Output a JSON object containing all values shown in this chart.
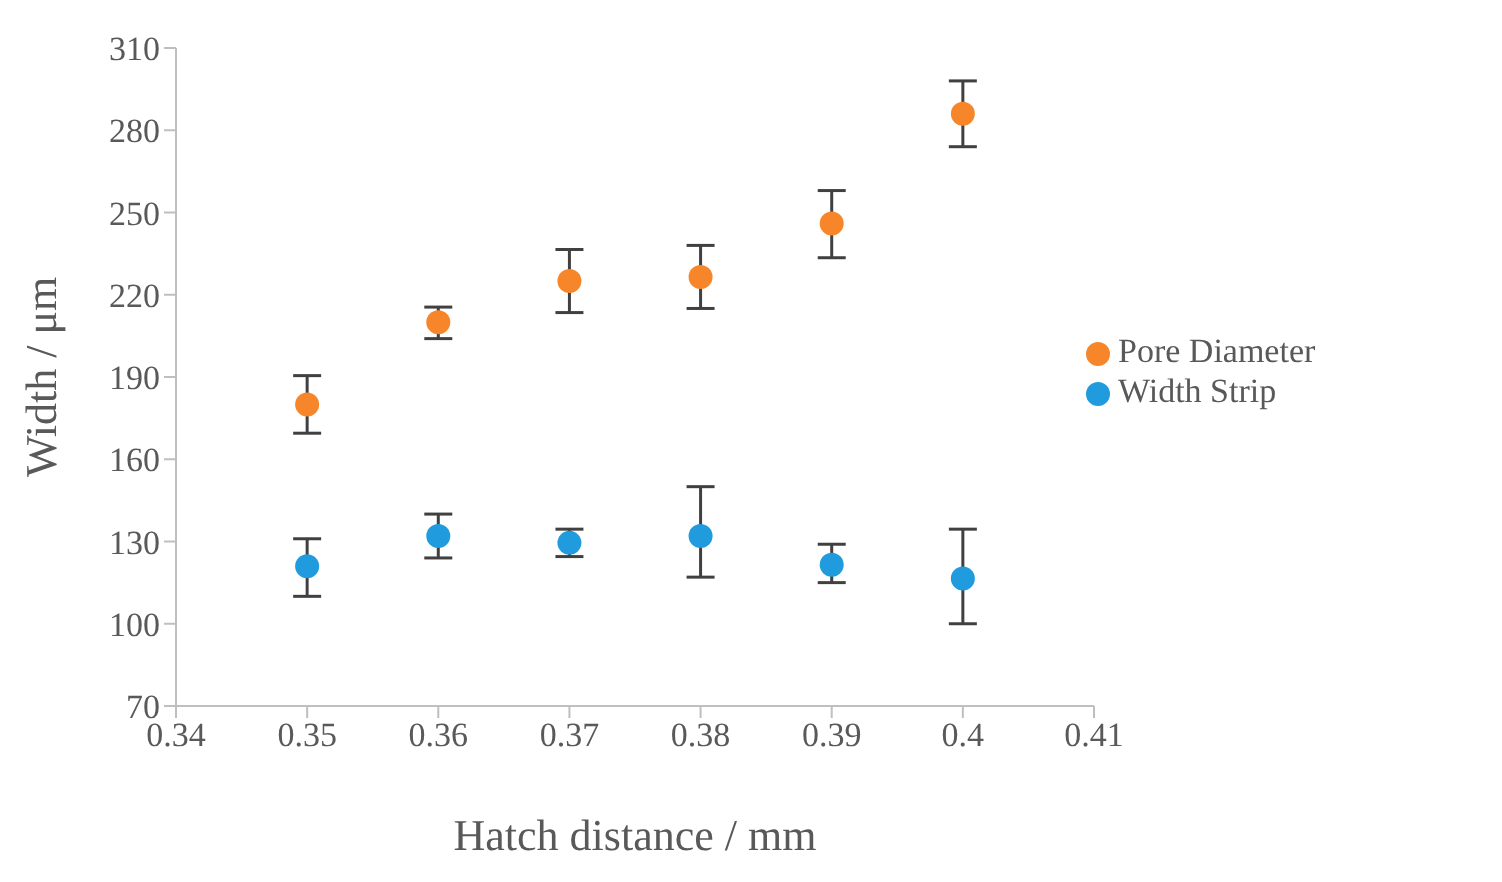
{
  "chart_data": {
    "type": "scatter",
    "xlabel": "Hatch distance / mm",
    "ylabel": "Width / μm",
    "x": [
      0.35,
      0.36,
      0.37,
      0.38,
      0.39,
      0.4
    ],
    "series": [
      {
        "name": "Width Strip",
        "color": "#1f9bde",
        "values": [
          121,
          132,
          129.5,
          132,
          121.5,
          116.5
        ],
        "errors": [
          [
            110,
            131
          ],
          [
            124,
            140
          ],
          [
            124.5,
            134.5
          ],
          [
            117,
            150
          ],
          [
            115,
            129
          ],
          [
            100,
            134.5
          ]
        ]
      },
      {
        "name": "Pore Diameter",
        "color": "#f7862a",
        "values": [
          180,
          210,
          225,
          226.5,
          246,
          286
        ],
        "errors": [
          [
            169.5,
            190.5
          ],
          [
            204,
            215.5
          ],
          [
            213.5,
            236.5
          ],
          [
            215,
            238
          ],
          [
            233.5,
            258
          ],
          [
            274,
            298
          ]
        ]
      }
    ],
    "xlim": [
      0.34,
      0.41
    ],
    "xticks": [
      0.34,
      0.35,
      0.36,
      0.37,
      0.38,
      0.39,
      0.4,
      0.41
    ],
    "ylim": [
      70,
      310
    ],
    "yticks": [
      70,
      100,
      130,
      160,
      190,
      220,
      250,
      280,
      310
    ],
    "grid": false,
    "legend": "right",
    "marker": "circle"
  }
}
